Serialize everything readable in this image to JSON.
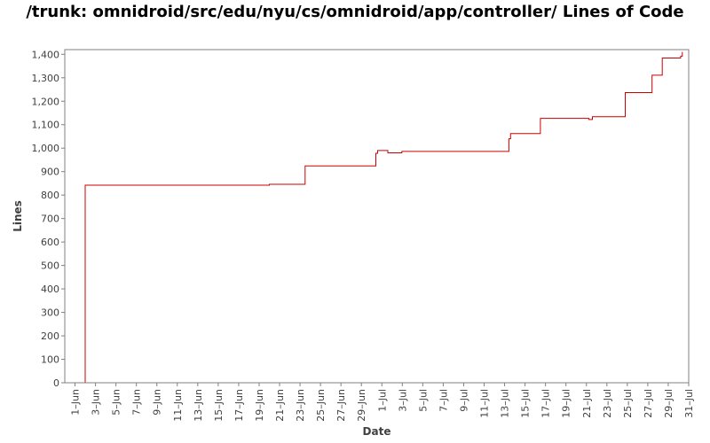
{
  "chart_data": {
    "type": "line",
    "title": "/trunk: omnidroid/src/edu/nyu/cs/omnidroid/app/controller/ Lines of Code",
    "xlabel": "Date",
    "ylabel": "Lines",
    "ylim": [
      0,
      1420
    ],
    "yticks": [
      0,
      100,
      200,
      300,
      400,
      500,
      600,
      700,
      800,
      900,
      1000,
      1100,
      1200,
      1300,
      1400
    ],
    "xlim": [
      "2008-05-31",
      "2008-07-31"
    ],
    "xticks": [
      {
        "date": "2008-06-01",
        "label": "1–Jun"
      },
      {
        "date": "2008-06-03",
        "label": "3–Jun"
      },
      {
        "date": "2008-06-05",
        "label": "5–Jun"
      },
      {
        "date": "2008-06-07",
        "label": "7–Jun"
      },
      {
        "date": "2008-06-09",
        "label": "9–Jun"
      },
      {
        "date": "2008-06-11",
        "label": "11–Jun"
      },
      {
        "date": "2008-06-13",
        "label": "13–Jun"
      },
      {
        "date": "2008-06-15",
        "label": "15–Jun"
      },
      {
        "date": "2008-06-17",
        "label": "17–Jun"
      },
      {
        "date": "2008-06-19",
        "label": "19–Jun"
      },
      {
        "date": "2008-06-21",
        "label": "21–Jun"
      },
      {
        "date": "2008-06-23",
        "label": "23–Jun"
      },
      {
        "date": "2008-06-25",
        "label": "25–Jun"
      },
      {
        "date": "2008-06-27",
        "label": "27–Jun"
      },
      {
        "date": "2008-06-29",
        "label": "29–Jun"
      },
      {
        "date": "2008-07-01",
        "label": "1–Jul"
      },
      {
        "date": "2008-07-03",
        "label": "3–Jul"
      },
      {
        "date": "2008-07-05",
        "label": "5–Jul"
      },
      {
        "date": "2008-07-07",
        "label": "7–Jul"
      },
      {
        "date": "2008-07-09",
        "label": "9–Jul"
      },
      {
        "date": "2008-07-11",
        "label": "11–Jul"
      },
      {
        "date": "2008-07-13",
        "label": "13–Jul"
      },
      {
        "date": "2008-07-15",
        "label": "15–Jul"
      },
      {
        "date": "2008-07-17",
        "label": "17–Jul"
      },
      {
        "date": "2008-07-19",
        "label": "19–Jul"
      },
      {
        "date": "2008-07-21",
        "label": "21–Jul"
      },
      {
        "date": "2008-07-23",
        "label": "23–Jul"
      },
      {
        "date": "2008-07-25",
        "label": "25–Jul"
      },
      {
        "date": "2008-07-27",
        "label": "27–Jul"
      },
      {
        "date": "2008-07-29",
        "label": "29–Jul"
      },
      {
        "date": "2008-07-31",
        "label": "31–Jul"
      }
    ],
    "grid": false,
    "line_color": "#cc0000",
    "series": [
      {
        "step": true,
        "points": [
          [
            "2008-06-02T00:00",
            0
          ],
          [
            "2008-06-02T00:00",
            842
          ],
          [
            "2008-06-20T00:00",
            846
          ],
          [
            "2008-06-23T12:00",
            924
          ],
          [
            "2008-06-30T10:00",
            978
          ],
          [
            "2008-06-30T14:00",
            990
          ],
          [
            "2008-07-01T14:00",
            980
          ],
          [
            "2008-07-02T23:00",
            986
          ],
          [
            "2008-07-13T10:00",
            1040
          ],
          [
            "2008-07-13T14:00",
            1062
          ],
          [
            "2008-07-16T12:00",
            1127
          ],
          [
            "2008-07-21T06:00",
            1122
          ],
          [
            "2008-07-21T14:00",
            1134
          ],
          [
            "2008-07-24T19:00",
            1237
          ],
          [
            "2008-07-27T10:00",
            1311
          ],
          [
            "2008-07-28T10:00",
            1384
          ],
          [
            "2008-07-30T05:00",
            1392
          ],
          [
            "2008-07-30T09:00",
            1410
          ]
        ]
      }
    ]
  }
}
